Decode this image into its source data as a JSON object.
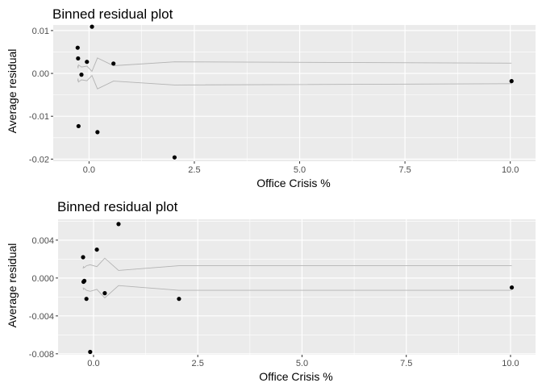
{
  "chart_data": [
    {
      "type": "scatter",
      "title": "Binned residual plot",
      "xlabel": "Office Crisis %",
      "ylabel": "Average residual",
      "xlim": [
        -0.85,
        10.6
      ],
      "ylim": [
        -0.0205,
        0.0113
      ],
      "x_ticks": [
        0,
        2.5,
        5,
        7.5,
        10
      ],
      "x_tick_labels": [
        "0.0",
        "2.5",
        "5.0",
        "7.5",
        "10.0"
      ],
      "y_ticks": [
        -0.02,
        -0.01,
        0,
        0.01
      ],
      "y_tick_labels": [
        "-0.02",
        "-0.01",
        "0.00",
        "0.01"
      ],
      "grid": true,
      "background": "#ebebeb",
      "point_color": "#000000",
      "band_color": "#b3b3b3",
      "points": [
        {
          "x": -0.27,
          "y": 0.006
        },
        {
          "x": -0.26,
          "y": 0.0035
        },
        {
          "x": -0.25,
          "y": -0.0123
        },
        {
          "x": -0.18,
          "y": -0.0003
        },
        {
          "x": -0.05,
          "y": 0.0027
        },
        {
          "x": 0.07,
          "y": 0.0109
        },
        {
          "x": 0.2,
          "y": -0.0137
        },
        {
          "x": 0.58,
          "y": 0.0023
        },
        {
          "x": 2.03,
          "y": -0.0196
        },
        {
          "x": 10.03,
          "y": -0.0018
        }
      ],
      "band_x": [
        -0.27,
        -0.26,
        -0.25,
        -0.18,
        -0.05,
        0.07,
        0.2,
        0.58,
        2.03,
        10.03
      ],
      "band_upper": [
        0.0018,
        0.0012,
        0.002,
        0.0015,
        0.0017,
        0.0005,
        0.0036,
        0.0018,
        0.0027,
        0.0024
      ],
      "band_lower": [
        -0.0018,
        -0.0012,
        -0.002,
        -0.0015,
        -0.0017,
        -0.0005,
        -0.0036,
        -0.0018,
        -0.0027,
        -0.0024
      ]
    },
    {
      "type": "scatter",
      "title": "Binned residual plot",
      "xlabel": "Office Crisis %",
      "ylabel": "Average residual",
      "xlim": [
        -0.85,
        10.6
      ],
      "ylim": [
        -0.0081,
        0.0062
      ],
      "x_ticks": [
        0,
        2.5,
        5,
        7.5,
        10
      ],
      "x_tick_labels": [
        "0.0",
        "2.5",
        "5.0",
        "7.5",
        "10.0"
      ],
      "y_ticks": [
        -0.008,
        -0.004,
        0,
        0.004
      ],
      "y_tick_labels": [
        "-0.008",
        "-0.004",
        "0.000",
        "0.004"
      ],
      "grid": true,
      "background": "#ebebeb",
      "point_color": "#000000",
      "band_color": "#b3b3b3",
      "points": [
        {
          "x": -0.25,
          "y": 0.0022
        },
        {
          "x": -0.24,
          "y": -0.0004
        },
        {
          "x": -0.22,
          "y": -0.0003
        },
        {
          "x": -0.17,
          "y": -0.0022
        },
        {
          "x": -0.08,
          "y": -0.0078
        },
        {
          "x": 0.08,
          "y": 0.003
        },
        {
          "x": 0.27,
          "y": -0.0016
        },
        {
          "x": 0.6,
          "y": 0.0057
        },
        {
          "x": 2.05,
          "y": -0.0022
        },
        {
          "x": 10.03,
          "y": -0.001
        }
      ],
      "band_x": [
        -0.25,
        -0.24,
        -0.22,
        -0.17,
        -0.08,
        0.08,
        0.27,
        0.6,
        2.05,
        10.03
      ],
      "band_upper": [
        0.001,
        0.0012,
        0.0011,
        0.0013,
        0.0014,
        0.0012,
        0.0021,
        0.0008,
        0.0013,
        0.0013
      ],
      "band_lower": [
        -0.001,
        -0.0012,
        -0.0011,
        -0.0013,
        -0.0014,
        -0.0012,
        -0.0021,
        -0.0008,
        -0.0013,
        -0.0013
      ]
    }
  ]
}
